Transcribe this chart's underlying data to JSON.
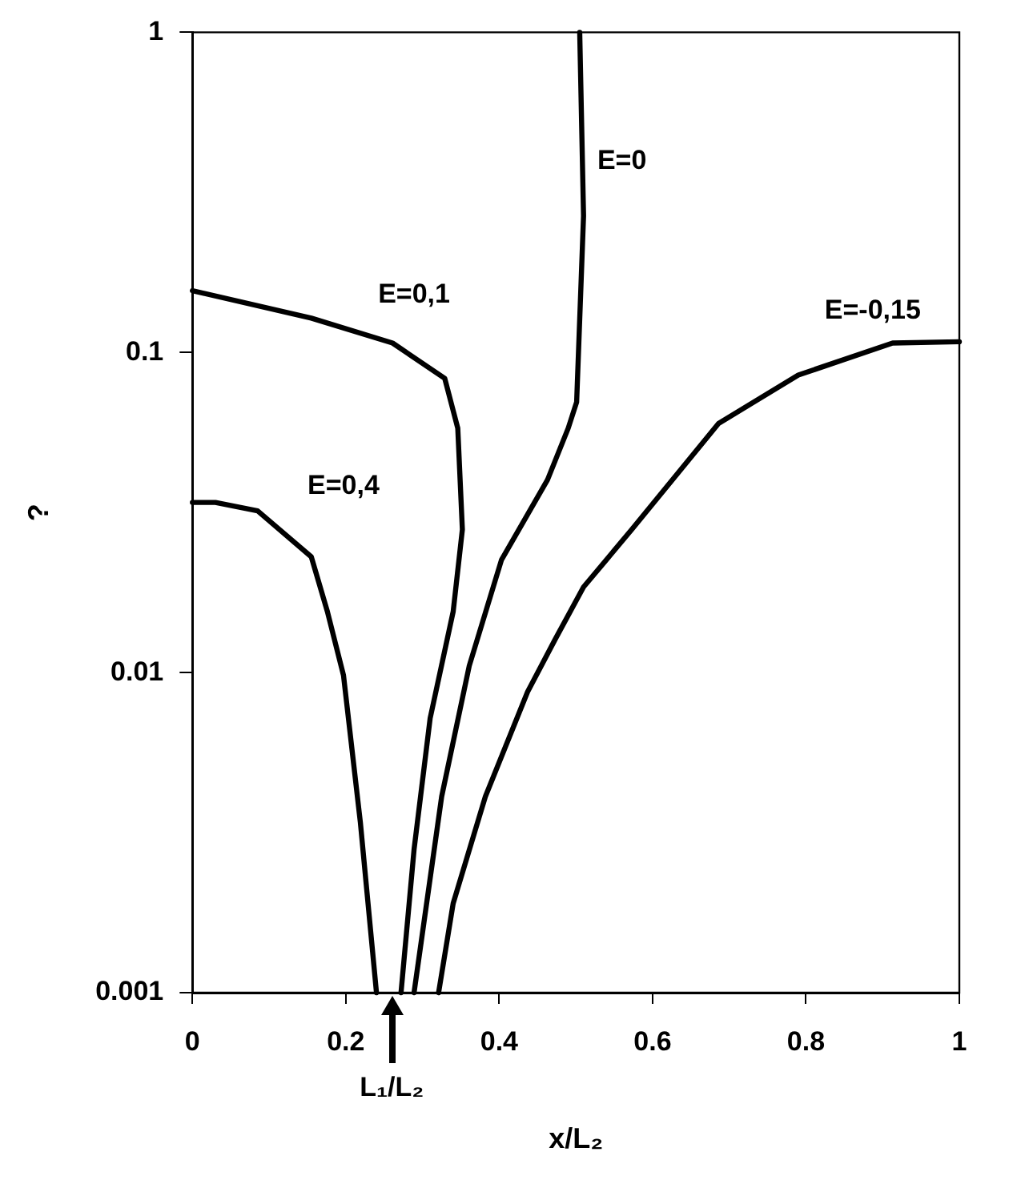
{
  "chart_data": {
    "type": "line",
    "xlabel": "x/L₂",
    "ylabel": "?",
    "log": "y",
    "xlim": [
      0,
      1
    ],
    "ylim": [
      0.001,
      1
    ],
    "xticks": [
      0,
      0.2,
      0.4,
      0.6,
      0.8,
      1
    ],
    "yticks": [
      0.001,
      0.01,
      0.1,
      1
    ],
    "grid": false,
    "legend": false,
    "marker": "none",
    "line_style": "solid",
    "series": [
      {
        "name": "E=0,4",
        "color": "#000000",
        "x": [
          0,
          0.03,
          0.085,
          0.155,
          0.176,
          0.197,
          0.219,
          0.24
        ],
        "values": [
          0.034,
          0.034,
          0.032,
          0.023,
          0.0155,
          0.0098,
          0.0034,
          0.001
        ]
      },
      {
        "name": "E=0,1",
        "color": "#000000",
        "x": [
          0,
          0.155,
          0.261,
          0.329,
          0.346,
          0.352,
          0.34,
          0.31,
          0.289,
          0.272
        ],
        "values": [
          0.156,
          0.128,
          0.107,
          0.083,
          0.058,
          0.028,
          0.0155,
          0.0072,
          0.0028,
          0.001
        ]
      },
      {
        "name": "E=0",
        "color": "#000000",
        "x": [
          0.505,
          0.51,
          0.501,
          0.49,
          0.463,
          0.403,
          0.361,
          0.325,
          0.289
        ],
        "values": [
          1,
          0.267,
          0.07,
          0.058,
          0.04,
          0.0225,
          0.0105,
          0.0041,
          0.001
        ]
      },
      {
        "name": "E=-0,15",
        "color": "#000000",
        "x": [
          1,
          0.913,
          0.79,
          0.686,
          0.573,
          0.51,
          0.473,
          0.437,
          0.382,
          0.34,
          0.321
        ],
        "values": [
          0.108,
          0.107,
          0.085,
          0.06,
          0.028,
          0.0185,
          0.0127,
          0.0087,
          0.0041,
          0.0019,
          0.001
        ]
      }
    ],
    "annotations": [
      "L₁/L₂"
    ]
  }
}
